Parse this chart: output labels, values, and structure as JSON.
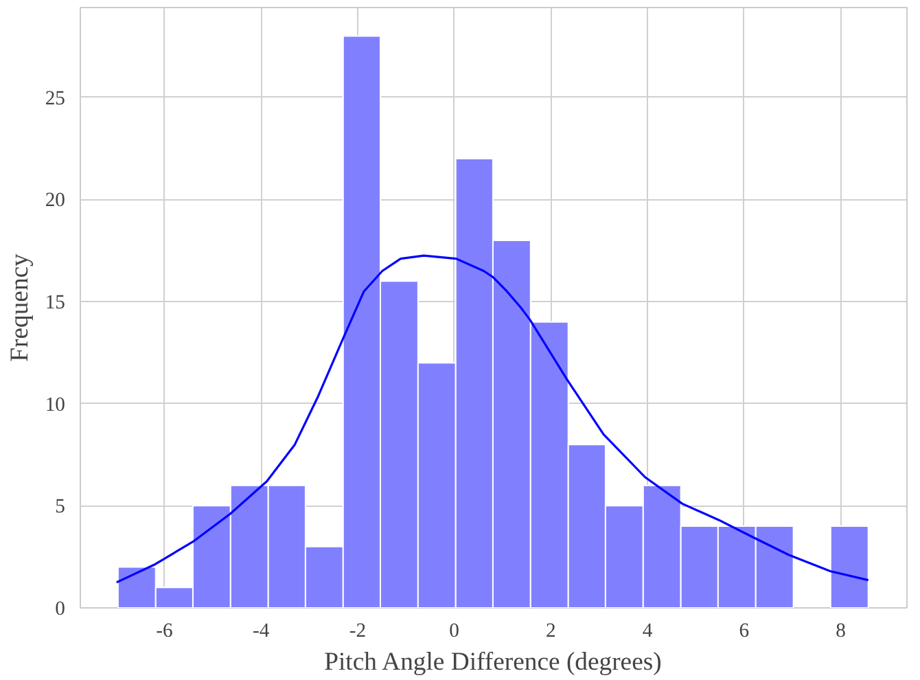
{
  "chart_data": {
    "type": "histogram",
    "xlabel": "Pitch Angle Difference (degrees)",
    "ylabel": "Frequency",
    "bins": [
      -6.96,
      -6.18,
      -5.41,
      -4.63,
      -3.85,
      -3.08,
      -2.3,
      -1.53,
      -0.75,
      0.03,
      0.8,
      1.58,
      2.36,
      3.13,
      3.91,
      4.69,
      5.46,
      6.24,
      7.02,
      7.79,
      8.57
    ],
    "values": [
      2,
      1,
      5,
      6,
      6,
      3,
      28,
      16,
      12,
      22,
      18,
      14,
      8,
      5,
      6,
      4,
      4,
      4,
      0,
      4
    ],
    "color": "#8080ff",
    "series": [
      {
        "type": "line",
        "color": "#0000ff",
        "x": [
          -6.99,
          -6.22,
          -5.41,
          -4.64,
          -3.88,
          -3.3,
          -2.83,
          -2.3,
          -1.87,
          -1.49,
          -1.11,
          -0.63,
          0.04,
          0.61,
          0.8,
          1.09,
          1.38,
          1.57,
          2.33,
          3.09,
          3.95,
          4.72,
          5.48,
          6.15,
          6.92,
          7.78,
          8.57
        ],
        "values": [
          1.25,
          2.1,
          3.24,
          4.6,
          6.2,
          8.0,
          10.3,
          13.2,
          15.5,
          16.5,
          17.1,
          17.25,
          17.1,
          16.5,
          16.2,
          15.5,
          14.7,
          14.1,
          11.2,
          8.5,
          6.4,
          5.1,
          4.3,
          3.5,
          2.6,
          1.8,
          1.36
        ]
      }
    ],
    "xlim": [
      -7.74,
      9.37
    ],
    "ylim": [
      0,
      29.4
    ],
    "xticks": [
      -6,
      -4,
      -2,
      0,
      2,
      4,
      6,
      8
    ],
    "yticks": [
      0,
      5,
      10,
      15,
      20,
      25
    ],
    "grid": true
  }
}
